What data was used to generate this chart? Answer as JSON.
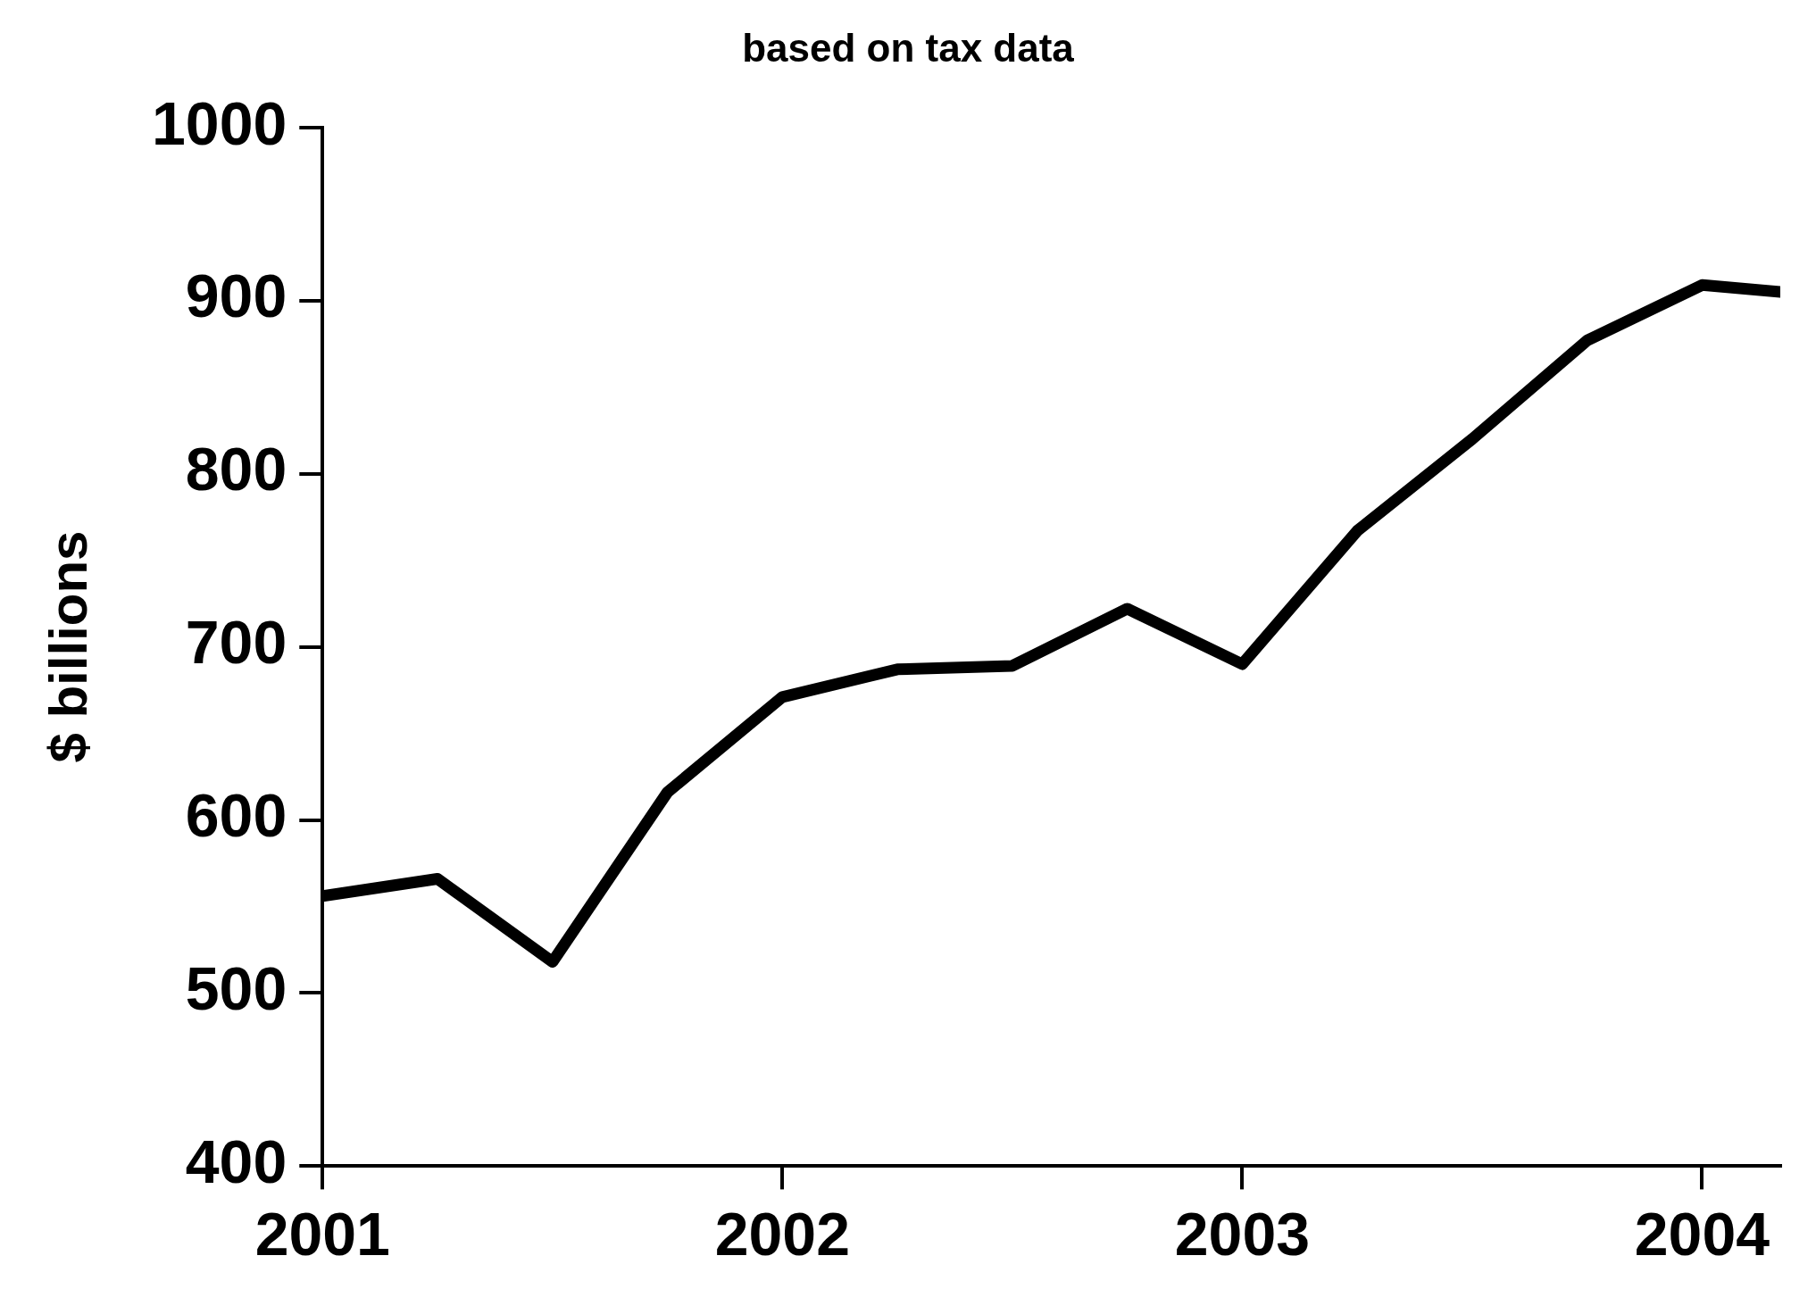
{
  "chart_data": {
    "type": "line",
    "title": "based on tax data",
    "ylabel": "$ billions",
    "x": [
      2001,
      2001.25,
      2001.5,
      2001.75,
      2002,
      2002.25,
      2002.5,
      2002.75,
      2003,
      2003.25,
      2003.5,
      2003.75,
      2004,
      2004.17
    ],
    "series": [
      {
        "color": "#000000",
        "values": [
          556,
          566,
          518,
          616,
          671,
          687,
          689,
          722,
          690,
          767,
          820,
          877,
          909,
          905
        ]
      }
    ],
    "xlim": [
      2001,
      2004.17
    ],
    "xticks": [
      2001,
      2002,
      2003,
      2004
    ],
    "ylim": [
      400,
      1000
    ],
    "yticks": [
      400,
      500,
      600,
      700,
      800,
      900,
      1000
    ],
    "legend": false,
    "marker": "none",
    "line_style": "solid"
  }
}
